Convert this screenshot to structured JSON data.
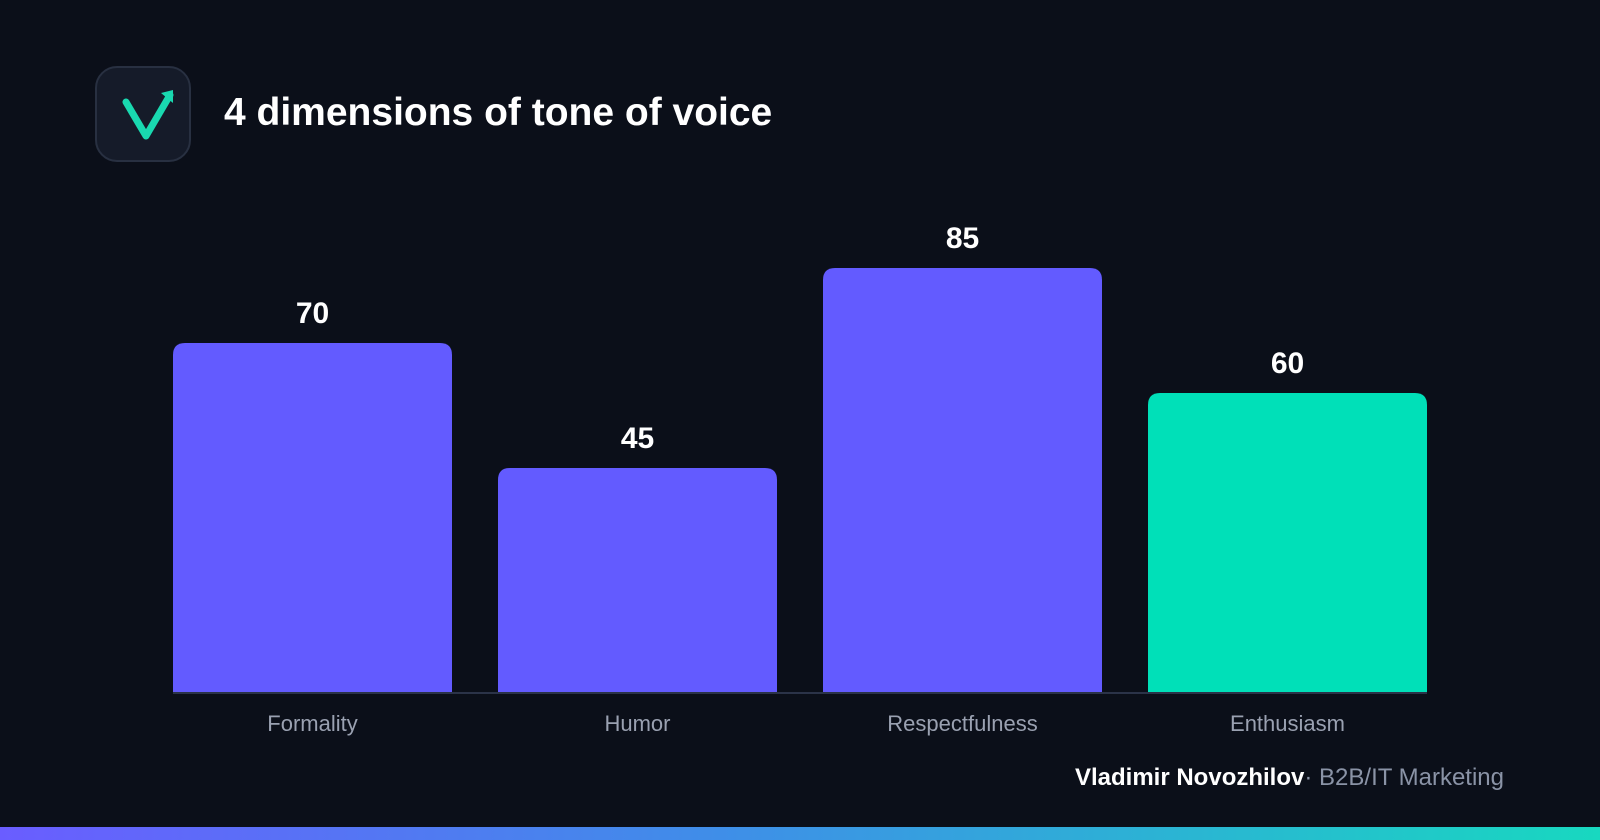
{
  "header": {
    "title": "4 dimensions of tone of voice"
  },
  "logo": {
    "icon": "checkmark-arrow-icon",
    "color": "#19d9b0"
  },
  "chart_data": {
    "type": "bar",
    "title": "4 dimensions of tone of voice",
    "categories": [
      "Formality",
      "Humor",
      "Respectfulness",
      "Enthusiasm"
    ],
    "values": [
      70,
      45,
      85,
      60
    ],
    "value_labels": [
      "70",
      "45",
      "85",
      "60"
    ],
    "colors": [
      "#635bff",
      "#635bff",
      "#635bff",
      "#00e0b8"
    ],
    "ylim": [
      0,
      100
    ],
    "grid": false,
    "axis_color": "#2b3348"
  },
  "footer": {
    "name": "Vladimir Novozhilov",
    "separator": "·",
    "role": "B2B/IT Marketing"
  }
}
